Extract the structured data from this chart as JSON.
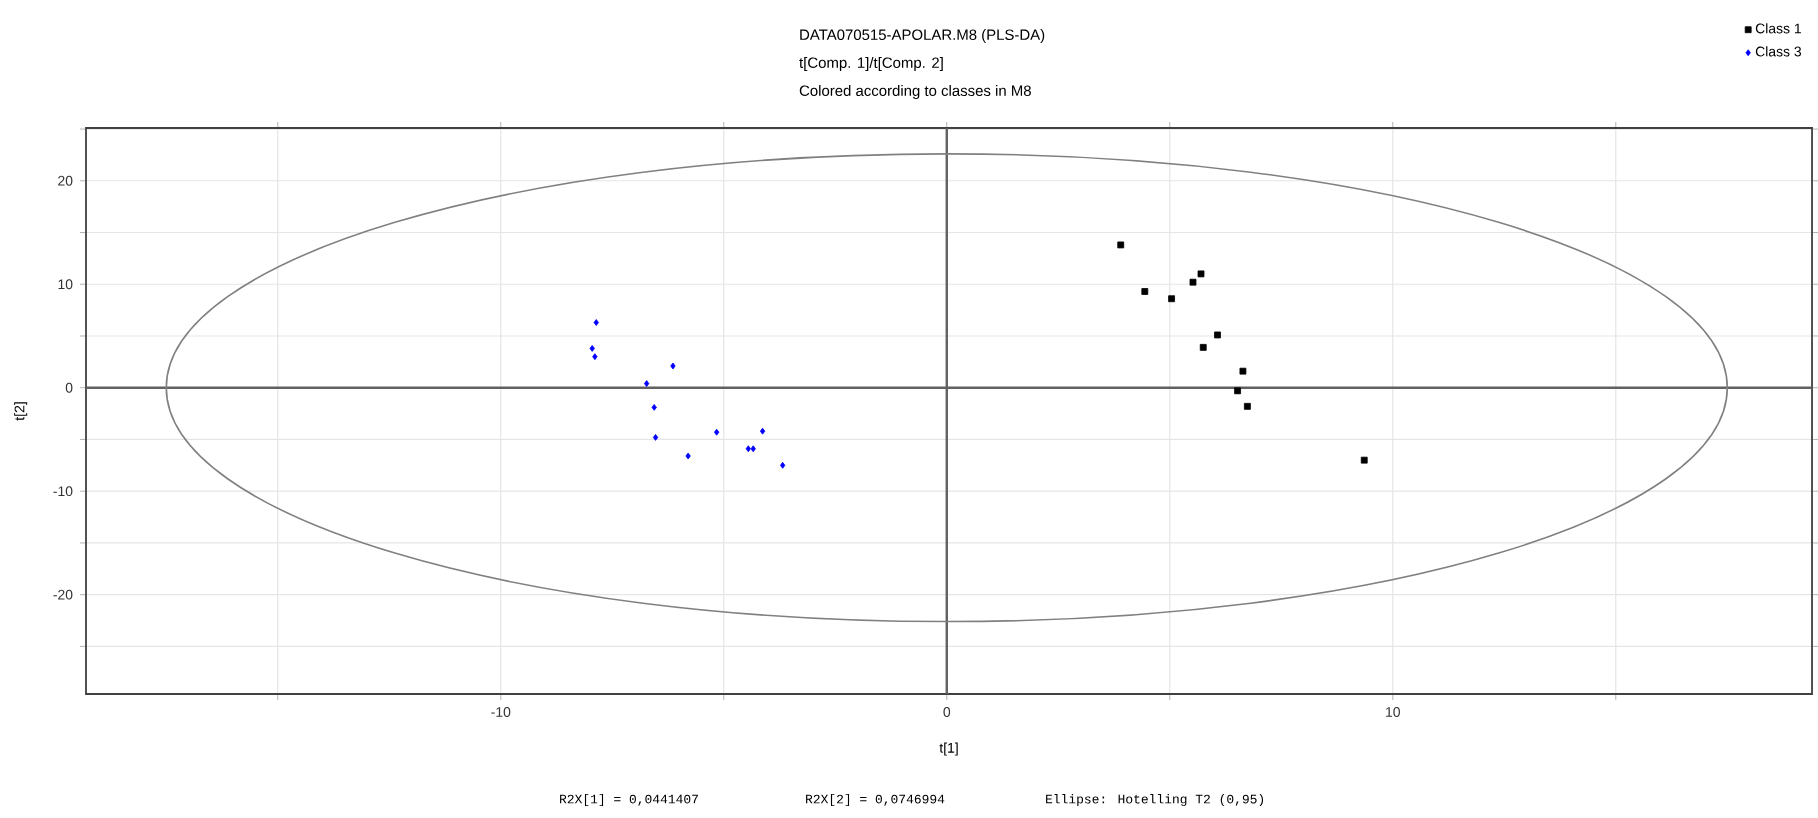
{
  "chart_data": {
    "type": "scatter",
    "title": "DATA070515-APOLAR.M8 (PLS-DA)",
    "subtitle": "t[Comp. 1]/t[Comp. 2]",
    "xlabel": "t[1]",
    "ylabel": "t[2]",
    "annotations": [
      "Colored according to classes in M8",
      "R2X[1] = 0,0441407",
      "R2X[2] = 0,0746994",
      "Ellipse: Hotelling T2 (0,95)"
    ],
    "xlim": [
      -19.3,
      19.4
    ],
    "ylim": [
      -29.6,
      25.1
    ],
    "xticks": [
      {
        "value": -15,
        "label": null
      },
      -10,
      {
        "value": -5,
        "label": null
      },
      0,
      {
        "value": 5,
        "label": null
      },
      10,
      {
        "value": 15,
        "label": null
      }
    ],
    "yticks": [
      {
        "value": -25,
        "label": null
      },
      -20,
      {
        "value": -15,
        "label": null
      },
      -10,
      {
        "value": -5,
        "label": null
      },
      0,
      {
        "value": 5,
        "label": null
      },
      10,
      {
        "value": 15,
        "label": null
      },
      20,
      {
        "value": 25,
        "label": null
      }
    ],
    "grid": true,
    "legend": "top right",
    "series": [
      {
        "name": "Class 1",
        "color": "#000000",
        "marker": "square",
        "x": [
          3.9,
          4.44,
          5.04,
          5.52,
          5.7,
          6.07,
          5.75,
          6.64,
          6.52,
          6.74,
          9.36
        ],
        "values": [
          13.8,
          9.3,
          8.6,
          10.2,
          11.0,
          5.1,
          3.9,
          1.6,
          -0.3,
          -1.8,
          -7.0
        ]
      },
      {
        "name": "Class 3",
        "color": "#0000ff",
        "marker": "diamond",
        "x": [
          -7.86,
          -7.95,
          -7.89,
          -6.14,
          -6.73,
          -6.56,
          -6.53,
          -5.8,
          -5.16,
          -4.13,
          -4.45,
          -4.34,
          -3.68
        ],
        "values": [
          6.3,
          3.8,
          3.0,
          2.1,
          0.4,
          -1.9,
          -4.8,
          -6.6,
          -4.3,
          -4.2,
          -5.9,
          -5.9,
          -7.5
        ]
      }
    ]
  }
}
